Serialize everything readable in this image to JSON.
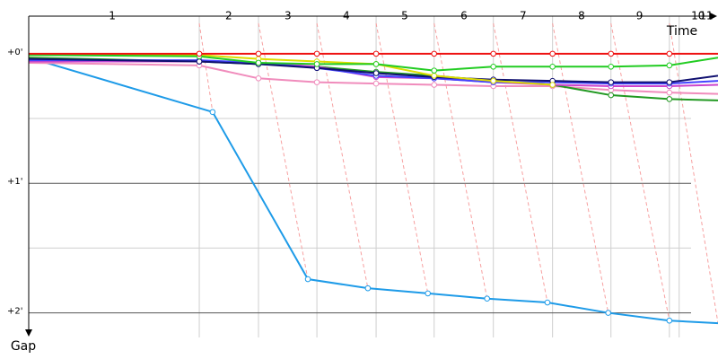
{
  "chart_data": {
    "type": "line",
    "xlabel": "Time",
    "ylabel": "Gap",
    "xlim": [
      0,
      17.58
    ],
    "ylim": [
      -0.29,
      2.19
    ],
    "xticks": [
      {
        "value": 2.13,
        "label": "1"
      },
      {
        "value": 5.1,
        "label": "2"
      },
      {
        "value": 6.61,
        "label": "3"
      },
      {
        "value": 8.1,
        "label": "4"
      },
      {
        "value": 9.59,
        "label": "5"
      },
      {
        "value": 11.1,
        "label": "6"
      },
      {
        "value": 12.61,
        "label": "7"
      },
      {
        "value": 14.1,
        "label": "8"
      },
      {
        "value": 15.58,
        "label": "9"
      },
      {
        "value": 17.07,
        "label": "10"
      },
      {
        "value": 17.28,
        "label": "11"
      }
    ],
    "xgrid": [
      4.35,
      5.86,
      7.35,
      8.86,
      10.34,
      11.85,
      13.36,
      14.85,
      16.34,
      16.59
    ],
    "yticks": [
      {
        "value": 0,
        "label": "+0'"
      },
      {
        "value": 1,
        "label": "+1'"
      },
      {
        "value": 2,
        "label": "+2'"
      }
    ],
    "yminor": [
      0.5,
      1.5
    ],
    "x": [
      0,
      4.35,
      5.86,
      7.35,
      8.86,
      10.34,
      11.85,
      13.36,
      14.85,
      16.34,
      17.58
    ],
    "series": [
      {
        "color": "#1e9be8",
        "x": [
          0,
          4.69,
          7.12,
          8.65,
          10.18,
          11.69,
          13.23,
          14.78,
          16.34,
          17.58
        ],
        "values": [
          0.03,
          0.45,
          1.74,
          1.81,
          1.85,
          1.89,
          1.92,
          2.0,
          2.06,
          2.08
        ]
      },
      {
        "color": "#f08cbc",
        "values": [
          0.07,
          0.09,
          0.19,
          0.22,
          0.23,
          0.24,
          0.25,
          0.25,
          0.28,
          0.3,
          0.31
        ]
      },
      {
        "color": "#229922",
        "values": [
          0.03,
          0.06,
          0.08,
          0.1,
          0.14,
          0.17,
          0.21,
          0.24,
          0.32,
          0.35,
          0.36
        ]
      },
      {
        "color": "#cc44cc",
        "values": [
          0.06,
          0.06,
          0.07,
          0.1,
          0.18,
          0.19,
          0.22,
          0.24,
          0.25,
          0.25,
          0.24
        ]
      },
      {
        "color": "#4444ff",
        "values": [
          0.05,
          0.05,
          0.07,
          0.11,
          0.17,
          0.19,
          0.22,
          0.22,
          0.23,
          0.23,
          0.21
        ]
      },
      {
        "color": "#101070",
        "values": [
          0.04,
          0.06,
          0.08,
          0.11,
          0.15,
          0.18,
          0.2,
          0.21,
          0.22,
          0.22,
          0.17
        ]
      },
      {
        "color": "#dddd00",
        "values": [
          0.01,
          0.01,
          0.04,
          0.06,
          0.08,
          0.17,
          0.21,
          0.24,
          null,
          null,
          null
        ]
      },
      {
        "color": "#22cc22",
        "values": [
          0.01,
          0.02,
          0.07,
          0.08,
          0.08,
          0.13,
          0.1,
          0.1,
          0.1,
          0.09,
          0.03
        ]
      },
      {
        "color": "#ee1111",
        "values": [
          0,
          0,
          0,
          0,
          0,
          0,
          0,
          0,
          0,
          0,
          0
        ]
      }
    ]
  }
}
